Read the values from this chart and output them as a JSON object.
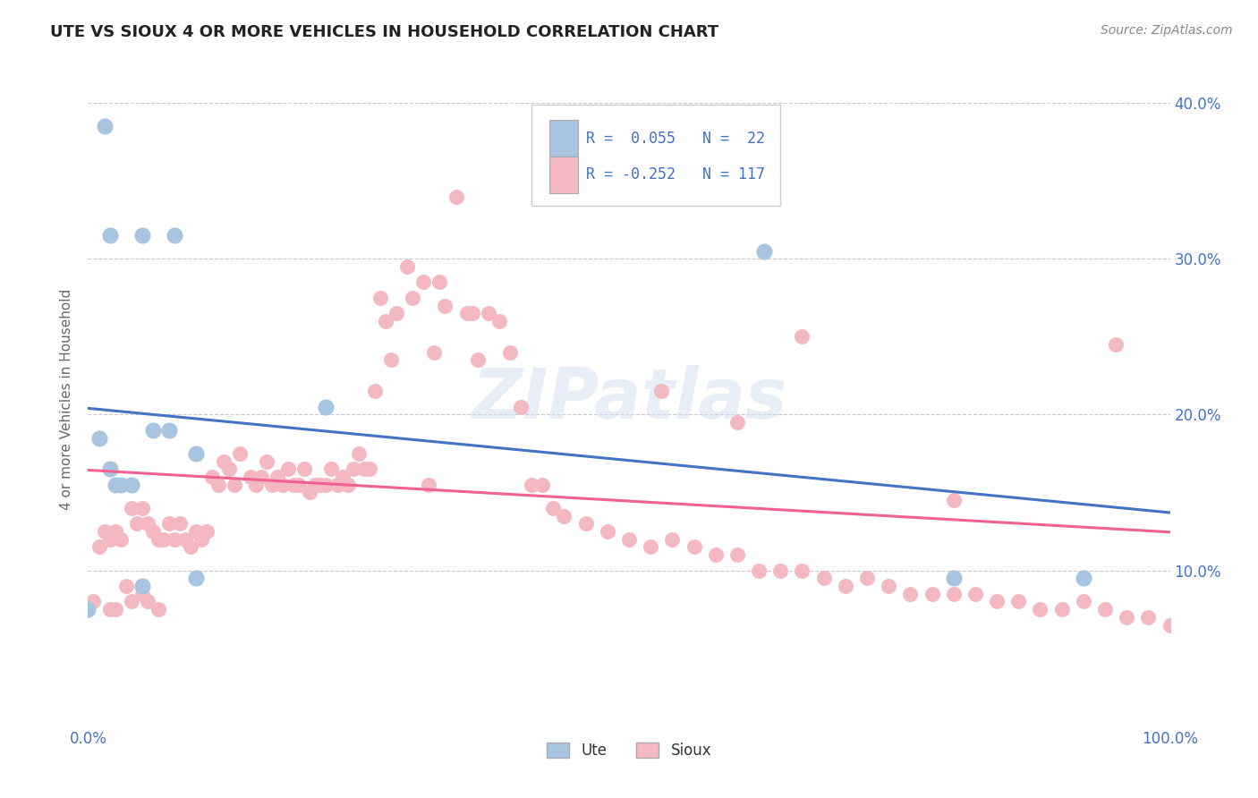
{
  "title": "UTE VS SIOUX 4 OR MORE VEHICLES IN HOUSEHOLD CORRELATION CHART",
  "source": "Source: ZipAtlas.com",
  "ylabel": "4 or more Vehicles in Household",
  "xlim": [
    0.0,
    1.0
  ],
  "ylim": [
    0.0,
    0.42
  ],
  "xtick_vals": [
    0.0,
    0.2,
    0.4,
    0.6,
    0.8,
    1.0
  ],
  "xtick_labels": [
    "0.0%",
    "",
    "",
    "",
    "",
    "100.0%"
  ],
  "ytick_vals": [
    0.0,
    0.1,
    0.2,
    0.3,
    0.4
  ],
  "ytick_right_labels": [
    "",
    "10.0%",
    "20.0%",
    "30.0%",
    "40.0%"
  ],
  "legend_labels": [
    "Ute",
    "Sioux"
  ],
  "ute_color": "#a8c4e0",
  "sioux_color": "#f4b8c1",
  "ute_line_color": "#4472c4",
  "sioux_line_color": "#f06090",
  "tick_color": "#4472c4",
  "background_color": "#ffffff",
  "grid_color": "#c8c8d0",
  "ute_x": [
    0.015,
    0.02,
    0.05,
    0.08,
    0.0,
    0.01,
    0.02,
    0.025,
    0.03,
    0.04,
    0.05,
    0.06,
    0.075,
    0.1,
    0.1,
    0.625,
    0.22,
    0.8,
    0.92
  ],
  "ute_y": [
    0.385,
    0.315,
    0.315,
    0.315,
    0.075,
    0.185,
    0.165,
    0.155,
    0.155,
    0.155,
    0.09,
    0.19,
    0.19,
    0.175,
    0.095,
    0.305,
    0.205,
    0.095,
    0.095
  ],
  "sioux_x": [
    0.005,
    0.01,
    0.015,
    0.02,
    0.02,
    0.025,
    0.025,
    0.03,
    0.035,
    0.04,
    0.04,
    0.045,
    0.05,
    0.05,
    0.055,
    0.055,
    0.06,
    0.065,
    0.065,
    0.07,
    0.075,
    0.08,
    0.085,
    0.09,
    0.095,
    0.1,
    0.105,
    0.11,
    0.115,
    0.12,
    0.125,
    0.13,
    0.135,
    0.14,
    0.15,
    0.155,
    0.16,
    0.165,
    0.17,
    0.175,
    0.18,
    0.185,
    0.19,
    0.195,
    0.2,
    0.205,
    0.21,
    0.215,
    0.22,
    0.225,
    0.23,
    0.235,
    0.24,
    0.245,
    0.25,
    0.255,
    0.26,
    0.265,
    0.27,
    0.275,
    0.28,
    0.285,
    0.295,
    0.3,
    0.31,
    0.315,
    0.32,
    0.325,
    0.33,
    0.34,
    0.35,
    0.355,
    0.36,
    0.37,
    0.38,
    0.39,
    0.4,
    0.41,
    0.42,
    0.43,
    0.44,
    0.46,
    0.48,
    0.5,
    0.52,
    0.54,
    0.56,
    0.58,
    0.6,
    0.62,
    0.64,
    0.66,
    0.68,
    0.7,
    0.72,
    0.74,
    0.76,
    0.78,
    0.8,
    0.82,
    0.84,
    0.86,
    0.88,
    0.9,
    0.92,
    0.94,
    0.96,
    0.98,
    1.0,
    0.53,
    0.6,
    0.66,
    0.8,
    0.95
  ],
  "sioux_y": [
    0.08,
    0.115,
    0.125,
    0.12,
    0.075,
    0.125,
    0.075,
    0.12,
    0.09,
    0.14,
    0.08,
    0.13,
    0.14,
    0.085,
    0.13,
    0.08,
    0.125,
    0.12,
    0.075,
    0.12,
    0.13,
    0.12,
    0.13,
    0.12,
    0.115,
    0.125,
    0.12,
    0.125,
    0.16,
    0.155,
    0.17,
    0.165,
    0.155,
    0.175,
    0.16,
    0.155,
    0.16,
    0.17,
    0.155,
    0.16,
    0.155,
    0.165,
    0.155,
    0.155,
    0.165,
    0.15,
    0.155,
    0.155,
    0.155,
    0.165,
    0.155,
    0.16,
    0.155,
    0.165,
    0.175,
    0.165,
    0.165,
    0.215,
    0.275,
    0.26,
    0.235,
    0.265,
    0.295,
    0.275,
    0.285,
    0.155,
    0.24,
    0.285,
    0.27,
    0.34,
    0.265,
    0.265,
    0.235,
    0.265,
    0.26,
    0.24,
    0.205,
    0.155,
    0.155,
    0.14,
    0.135,
    0.13,
    0.125,
    0.12,
    0.115,
    0.12,
    0.115,
    0.11,
    0.11,
    0.1,
    0.1,
    0.1,
    0.095,
    0.09,
    0.095,
    0.09,
    0.085,
    0.085,
    0.085,
    0.085,
    0.08,
    0.08,
    0.075,
    0.075,
    0.08,
    0.075,
    0.07,
    0.07,
    0.065,
    0.215,
    0.195,
    0.25,
    0.145,
    0.245
  ]
}
